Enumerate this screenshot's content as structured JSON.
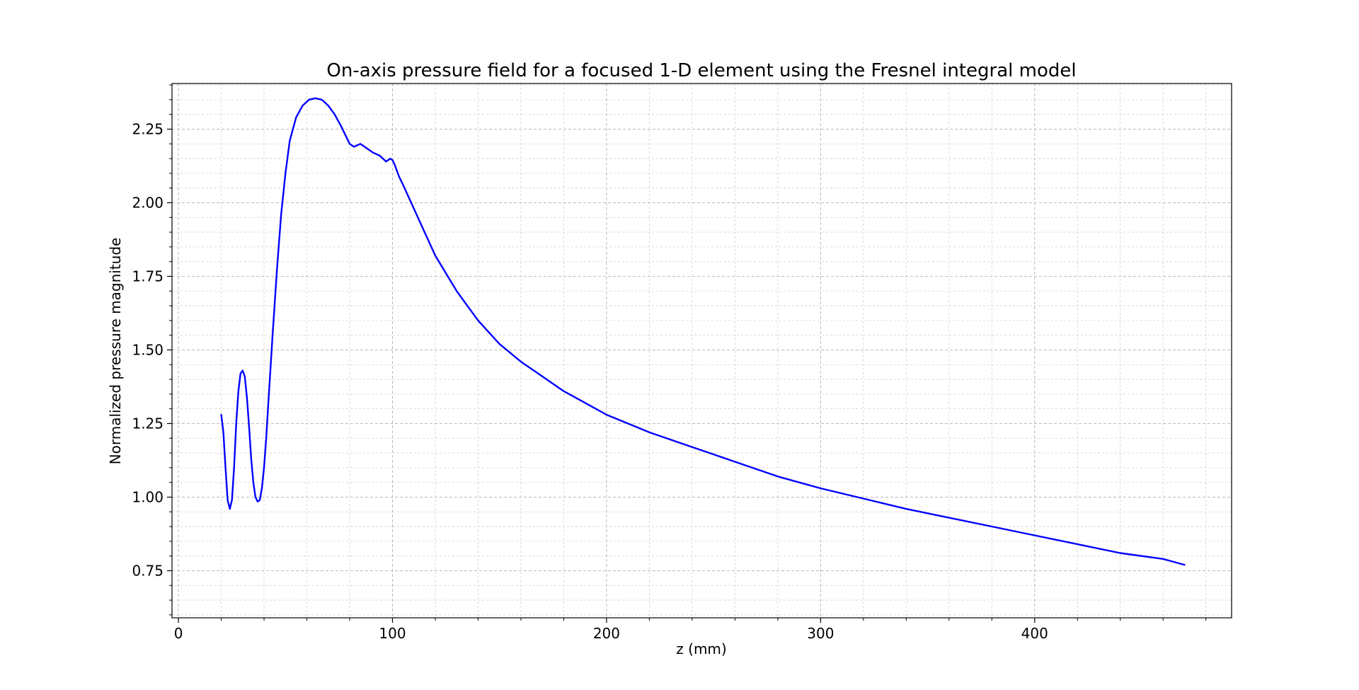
{
  "chart_data": {
    "type": "line",
    "title": "On-axis pressure field for a focused 1-D element using the Fresnel integral model",
    "xlabel": "z (mm)",
    "ylabel": "Normalized pressure magnitude",
    "xlim": [
      -3,
      492
    ],
    "ylim": [
      0.59,
      2.405
    ],
    "x_ticks": [
      0,
      100,
      200,
      300,
      400
    ],
    "x_tick_labels": [
      "0",
      "100",
      "200",
      "300",
      "400"
    ],
    "y_ticks": [
      0.75,
      1.0,
      1.25,
      1.5,
      1.75,
      2.0,
      2.25
    ],
    "y_tick_labels": [
      "0.75",
      "1.00",
      "1.25",
      "1.50",
      "1.75",
      "2.00",
      "2.25"
    ],
    "x_minor_step": 20,
    "y_minor_step": 0.05,
    "grid": "major and minor, dashed",
    "line_color": "#0000ff",
    "series": [
      {
        "x": [
          20,
          21,
          22,
          23,
          24,
          25,
          26,
          27,
          28,
          29,
          30,
          31,
          32,
          33,
          34,
          35,
          36,
          37,
          38,
          39,
          40,
          41,
          42,
          44,
          46,
          48,
          50,
          52,
          55,
          58,
          61,
          64,
          67,
          70,
          73,
          76,
          78,
          80,
          82,
          85,
          88,
          91,
          94,
          97,
          99,
          100,
          101,
          102,
          103,
          105,
          110,
          115,
          120,
          130,
          140,
          150,
          160,
          170,
          180,
          190,
          200,
          220,
          240,
          260,
          280,
          300,
          320,
          340,
          360,
          380,
          400,
          420,
          440,
          460,
          470
        ],
        "values": [
          1.28,
          1.22,
          1.1,
          0.99,
          0.96,
          0.99,
          1.1,
          1.25,
          1.36,
          1.42,
          1.43,
          1.41,
          1.34,
          1.24,
          1.13,
          1.05,
          1.0,
          0.985,
          0.99,
          1.03,
          1.1,
          1.2,
          1.32,
          1.55,
          1.77,
          1.96,
          2.1,
          2.21,
          2.29,
          2.33,
          2.35,
          2.355,
          2.35,
          2.33,
          2.3,
          2.26,
          2.23,
          2.2,
          2.19,
          2.2,
          2.185,
          2.17,
          2.16,
          2.14,
          2.15,
          2.145,
          2.13,
          2.11,
          2.09,
          2.06,
          1.98,
          1.9,
          1.82,
          1.7,
          1.6,
          1.52,
          1.46,
          1.41,
          1.36,
          1.32,
          1.28,
          1.22,
          1.17,
          1.12,
          1.07,
          1.03,
          0.995,
          0.96,
          0.93,
          0.9,
          0.87,
          0.84,
          0.81,
          0.79,
          0.77
        ]
      }
    ]
  }
}
